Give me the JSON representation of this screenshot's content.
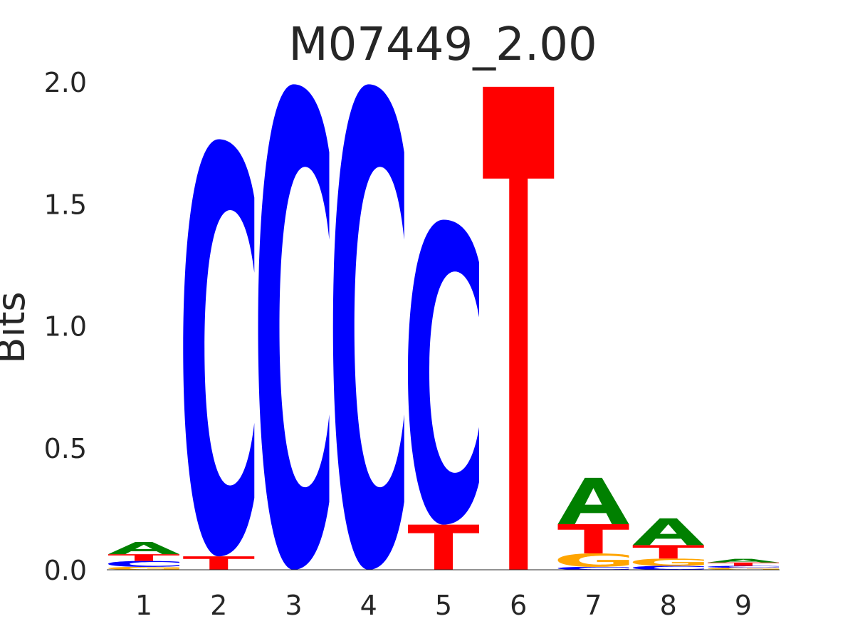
{
  "chart_data": {
    "type": "sequence-logo",
    "title": "M07449_2.00",
    "ylabel": "Bits",
    "ylim": [
      0,
      2
    ],
    "yticks": [
      "0.0",
      "0.5",
      "1.0",
      "1.5",
      "2.0"
    ],
    "xticks": [
      "1",
      "2",
      "3",
      "4",
      "5",
      "6",
      "7",
      "8",
      "9"
    ],
    "colors": {
      "A": "#008000",
      "C": "#0000ff",
      "G": "#ffa500",
      "T": "#ff0000"
    },
    "positions": [
      {
        "pos": "1",
        "letters": [
          {
            "base": "G",
            "bits": 0.012
          },
          {
            "base": "C",
            "bits": 0.024
          },
          {
            "base": "T",
            "bits": 0.028
          },
          {
            "base": "A",
            "bits": 0.05
          }
        ]
      },
      {
        "pos": "2",
        "letters": [
          {
            "base": "T",
            "bits": 0.055
          },
          {
            "base": "C",
            "bits": 1.71
          }
        ]
      },
      {
        "pos": "3",
        "letters": [
          {
            "base": "C",
            "bits": 1.99
          }
        ]
      },
      {
        "pos": "4",
        "letters": [
          {
            "base": "C",
            "bits": 1.99
          }
        ]
      },
      {
        "pos": "5",
        "letters": [
          {
            "base": "T",
            "bits": 0.185
          },
          {
            "base": "C",
            "bits": 1.25
          }
        ]
      },
      {
        "pos": "6",
        "letters": [
          {
            "base": "T",
            "bits": 1.98
          }
        ]
      },
      {
        "pos": "7",
        "letters": [
          {
            "base": "C",
            "bits": 0.012
          },
          {
            "base": "G",
            "bits": 0.055
          },
          {
            "base": "T",
            "bits": 0.12
          },
          {
            "base": "A",
            "bits": 0.19
          }
        ]
      },
      {
        "pos": "8",
        "letters": [
          {
            "base": "C",
            "bits": 0.016
          },
          {
            "base": "G",
            "bits": 0.03
          },
          {
            "base": "T",
            "bits": 0.055
          },
          {
            "base": "A",
            "bits": 0.11
          }
        ]
      },
      {
        "pos": "9",
        "letters": [
          {
            "base": "G",
            "bits": 0.008
          },
          {
            "base": "C",
            "bits": 0.008
          },
          {
            "base": "T",
            "bits": 0.014
          },
          {
            "base": "A",
            "bits": 0.015
          }
        ]
      }
    ]
  }
}
